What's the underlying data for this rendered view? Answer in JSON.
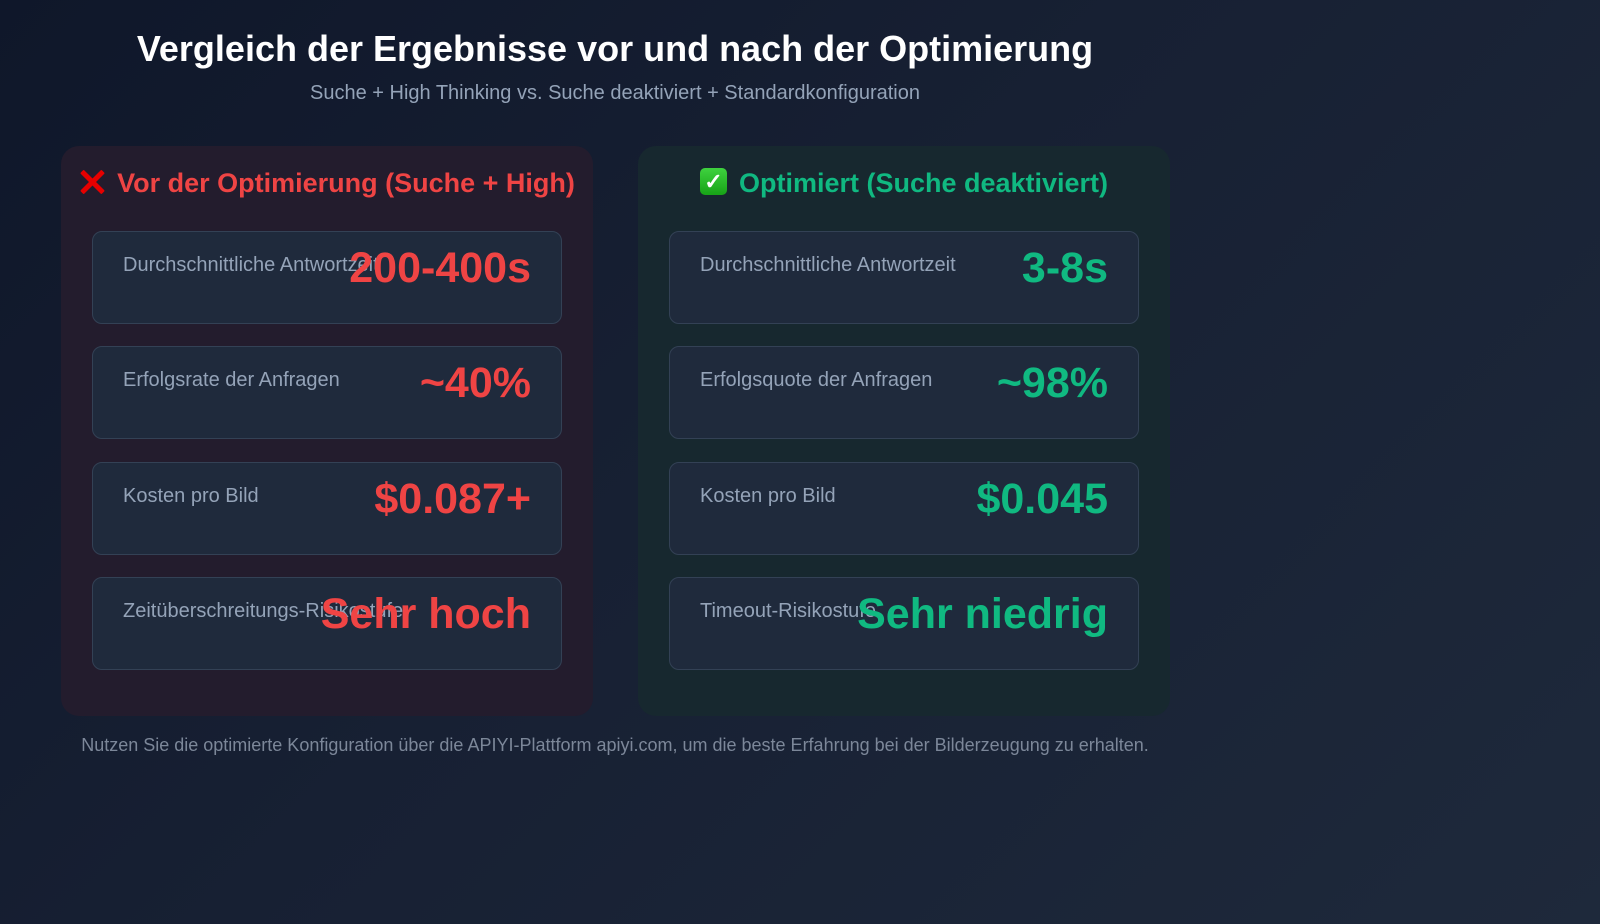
{
  "header": {
    "title": "Vergleich der Ergebnisse vor und nach der Optimierung",
    "subtitle": "Suche + High Thinking vs. Suche deaktiviert + Standardkonfiguration"
  },
  "colors": {
    "negative": "#ef4444",
    "positive": "#10b981",
    "background": "#0f172a",
    "label": "#94a3b8"
  },
  "panels": {
    "before": {
      "icon": "cross-mark-icon",
      "heading": "Vor der Optimierung (Suche + High)",
      "metrics": [
        {
          "label": "Durchschnittliche Antwortzeit",
          "value": "200-400s"
        },
        {
          "label": "Erfolgsrate der Anfragen",
          "value": "~40%"
        },
        {
          "label": "Kosten pro Bild",
          "value": "$0.087+"
        },
        {
          "label": "Zeitüberschreitungs-Risikostufe",
          "value": "Sehr hoch"
        }
      ]
    },
    "after": {
      "icon": "check-mark-icon",
      "icon_glyph": "✓",
      "heading": "Optimiert (Suche deaktiviert)",
      "metrics": [
        {
          "label": "Durchschnittliche Antwortzeit",
          "value": "3-8s"
        },
        {
          "label": "Erfolgsquote der Anfragen",
          "value": "~98%"
        },
        {
          "label": "Kosten pro Bild",
          "value": "$0.045"
        },
        {
          "label": "Timeout-Risikostufe",
          "value": "Sehr niedrig"
        }
      ]
    }
  },
  "footer": {
    "text": "Nutzen Sie die optimierte Konfiguration über die APIYI-Plattform apiyi.com, um die beste Erfahrung bei der Bilderzeugung zu erhalten."
  }
}
